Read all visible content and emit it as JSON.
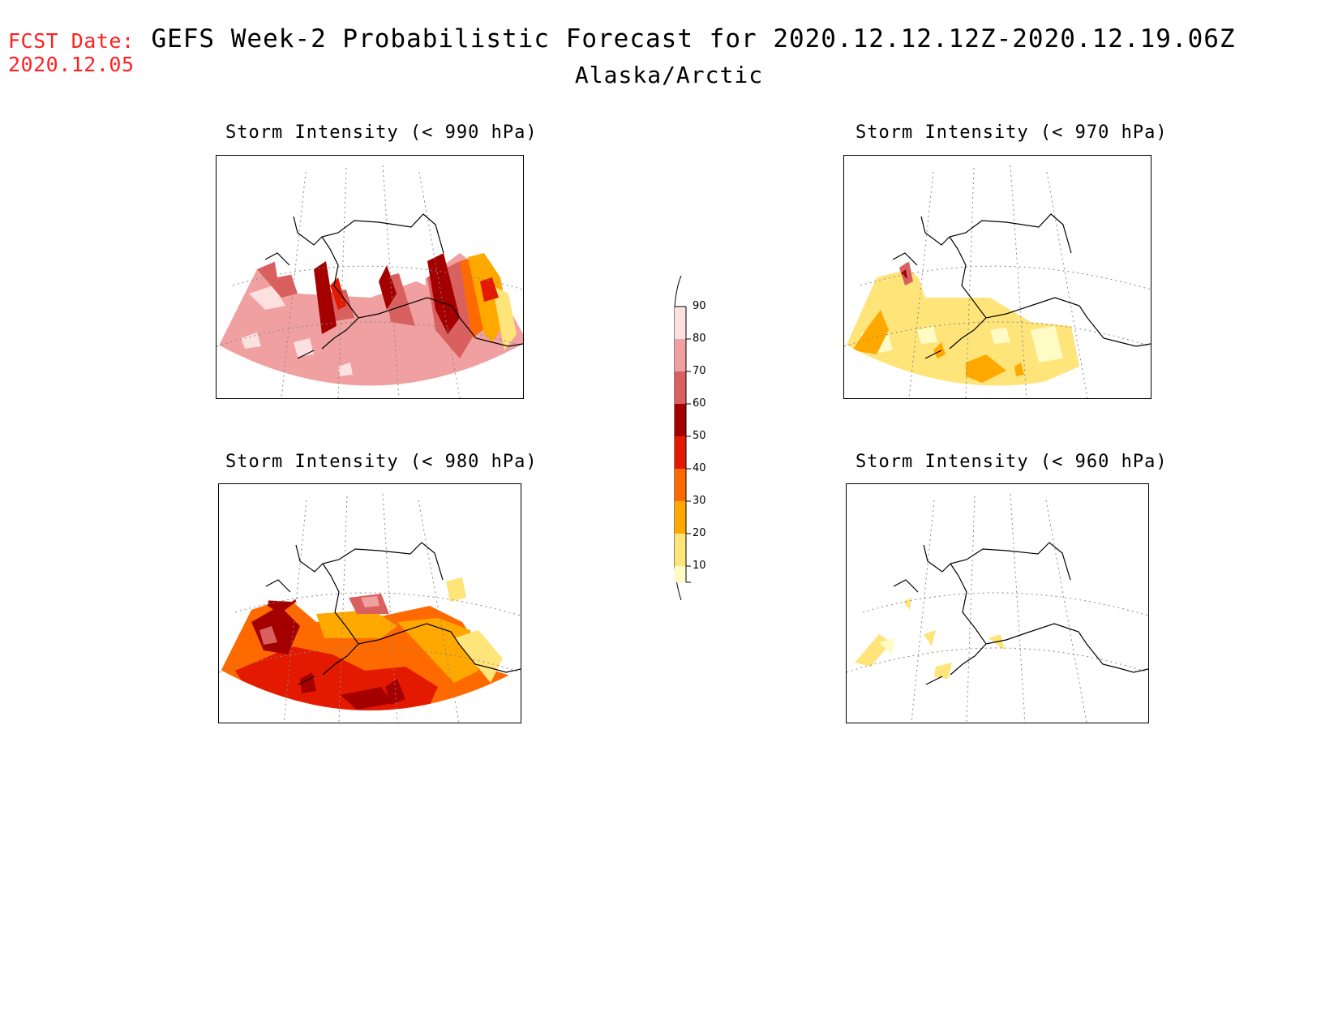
{
  "header": {
    "fcst_label": "FCST Date:",
    "fcst_date": "2020.12.05",
    "title": "GEFS Week-2 Probabilistic Forecast for 2020.12.12.12Z-2020.12.19.06Z",
    "subtitle": "Alaska/Arctic"
  },
  "panels": [
    {
      "id": "p990",
      "title": "Storm Intensity (< 990 hPa)",
      "threshold_hpa": 990,
      "dominant_probability_percent": "80-90"
    },
    {
      "id": "p970",
      "title": "Storm Intensity (< 970 hPa)",
      "threshold_hpa": 970,
      "dominant_probability_percent": "10-30"
    },
    {
      "id": "p980",
      "title": "Storm Intensity (< 980 hPa)",
      "threshold_hpa": 980,
      "dominant_probability_percent": "40-70"
    },
    {
      "id": "p960",
      "title": "Storm Intensity (< 960 hPa)",
      "threshold_hpa": 960,
      "dominant_probability_percent": "10-20"
    }
  ],
  "legend": {
    "ticks": [
      "90",
      "80",
      "70",
      "60",
      "50",
      "40",
      "30",
      "20",
      "10"
    ],
    "colors": {
      "10": "#fffbc4",
      "20": "#ffe47a",
      "30": "#ffa800",
      "40": "#ff6a00",
      "50": "#e41a00",
      "60": "#a50000",
      "70": "#d9605f",
      "80": "#f0a0a0",
      "90": "#fde0e0"
    }
  }
}
